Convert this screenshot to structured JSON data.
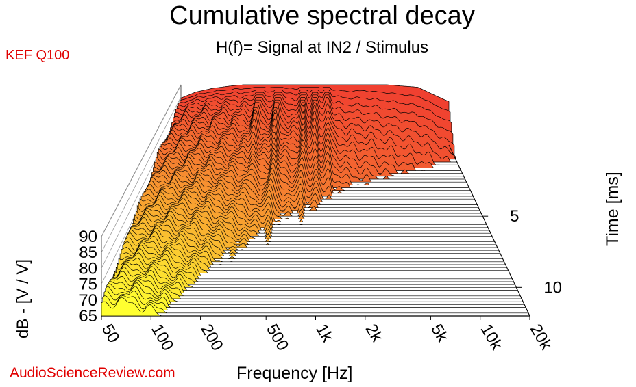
{
  "chart_data": {
    "type": "waterfall",
    "title": "Cumulative spectral decay",
    "subtitle": "H(f)= Signal at IN2 / Stimulus",
    "device_label": "KEF Q100",
    "credit": "AudioScienceReview.com",
    "xlabel": "Frequency [Hz]",
    "ylabel": "dB - [V / V]",
    "zlabel": "Time [ms]",
    "x_scale": "log",
    "xlim": [
      50,
      20000
    ],
    "ylim": [
      65,
      90
    ],
    "zlim": [
      0,
      12
    ],
    "x_ticks": [
      {
        "value": 50,
        "label": "50"
      },
      {
        "value": 100,
        "label": "100"
      },
      {
        "value": 200,
        "label": "200"
      },
      {
        "value": 500,
        "label": "500"
      },
      {
        "value": 1000,
        "label": "1k"
      },
      {
        "value": 2000,
        "label": "2k"
      },
      {
        "value": 5000,
        "label": "5k"
      },
      {
        "value": 10000,
        "label": "10k"
      },
      {
        "value": 20000,
        "label": "20k"
      }
    ],
    "y_ticks": [
      {
        "value": 90,
        "label": "90"
      },
      {
        "value": 85,
        "label": "85"
      },
      {
        "value": 80,
        "label": "80"
      },
      {
        "value": 75,
        "label": "75"
      },
      {
        "value": 70,
        "label": "70"
      },
      {
        "value": 65,
        "label": "65"
      }
    ],
    "z_ticks": [
      {
        "value": 5,
        "label": "5"
      },
      {
        "value": 10,
        "label": "10"
      }
    ],
    "initial_response": {
      "frequency_hz": [
        50,
        70,
        100,
        150,
        200,
        300,
        500,
        700,
        1000,
        1500,
        2000,
        3000,
        5000,
        7000,
        10000,
        14000,
        20000
      ],
      "level_db": [
        84.5,
        87,
        88.5,
        89.5,
        90,
        90.5,
        90.5,
        90.5,
        91,
        90.5,
        90,
        90.5,
        90,
        89.5,
        89,
        86,
        83
      ]
    },
    "decay_resonances": [
      {
        "frequency_hz": 300,
        "lasting_ms": 5.5
      },
      {
        "frequency_hz": 450,
        "lasting_ms": 12
      },
      {
        "frequency_hz": 780,
        "lasting_ms": 12
      },
      {
        "frequency_hz": 1000,
        "lasting_ms": 8
      },
      {
        "frequency_hz": 1300,
        "lasting_ms": 6
      }
    ],
    "colors": {
      "front_slice": "#ffff30",
      "back_slice": "#f04030",
      "axis": "#000000"
    }
  }
}
